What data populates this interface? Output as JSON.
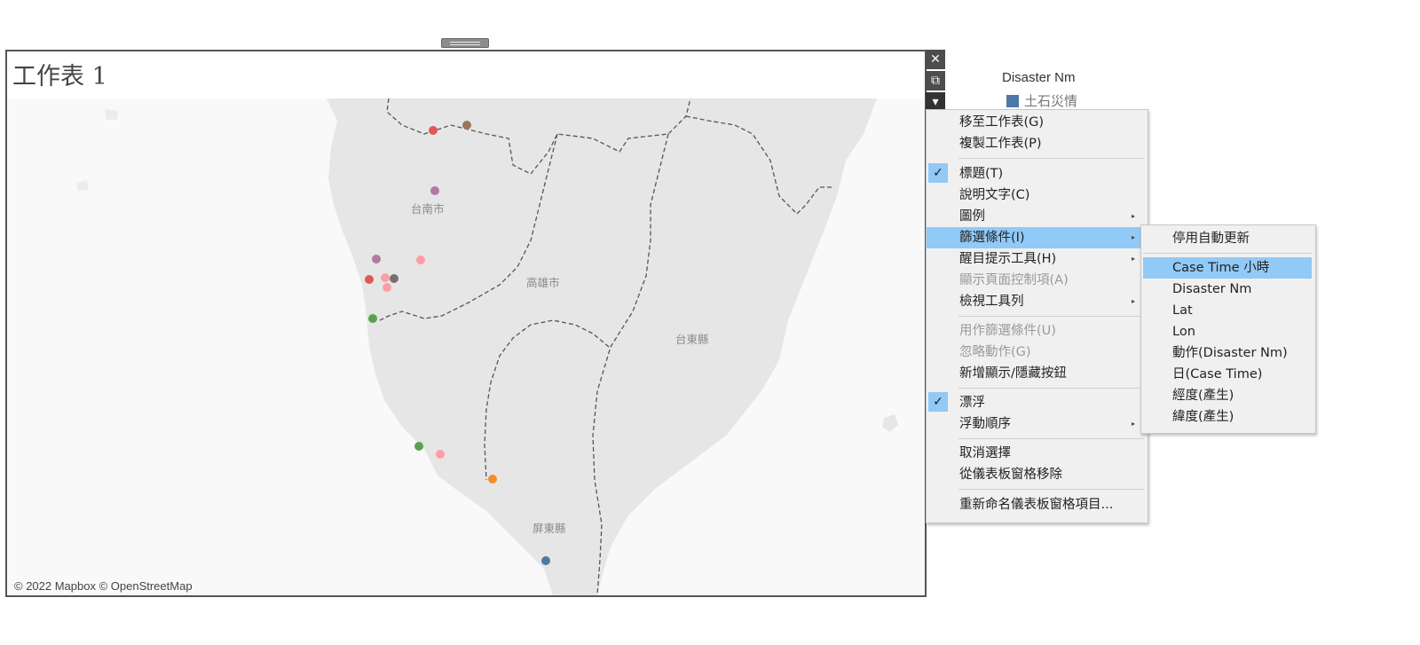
{
  "worksheet": {
    "title": "工作表 1",
    "attribution": "© 2022 Mapbox © OpenStreetMap",
    "map_labels": [
      "台南市",
      "高雄市",
      "台東縣",
      "屏東縣"
    ],
    "points": [
      {
        "color": "#e15759"
      },
      {
        "color": "#9c755f"
      },
      {
        "color": "#b07aa1"
      },
      {
        "color": "#b07aa1"
      },
      {
        "color": "#ff9da7"
      },
      {
        "color": "#e15759"
      },
      {
        "color": "#ff9da7"
      },
      {
        "color": "#79706e"
      },
      {
        "color": "#ff9da7"
      },
      {
        "color": "#59a14f"
      },
      {
        "color": "#59a14f"
      },
      {
        "color": "#ff9da7"
      },
      {
        "color": "#f28e2b"
      },
      {
        "color": "#4e79a7"
      }
    ]
  },
  "float_controls": {
    "close": "close-icon",
    "open": "external-link-icon",
    "more": "caret-down-icon"
  },
  "legend": {
    "title": "Disaster Nm",
    "items": [
      {
        "label": "土石災情",
        "color": "#4e79a7"
      }
    ]
  },
  "context_menu": {
    "items": [
      {
        "label": "移至工作表(G)"
      },
      {
        "label": "複製工作表(P)"
      },
      {
        "label": "標題(T)"
      },
      {
        "label": "說明文字(C)"
      },
      {
        "label": "圖例"
      },
      {
        "label": "篩選條件(I)"
      },
      {
        "label": "醒目提示工具(H)"
      },
      {
        "label": "顯示頁面控制項(A)"
      },
      {
        "label": "檢視工具列"
      },
      {
        "label": "用作篩選條件(U)"
      },
      {
        "label": "忽略動作(G)"
      },
      {
        "label": "新增顯示/隱藏按鈕"
      },
      {
        "label": "漂浮"
      },
      {
        "label": "浮動順序"
      },
      {
        "label": "取消選擇"
      },
      {
        "label": "從儀表板窗格移除"
      },
      {
        "label": "重新命名儀表板窗格項目..."
      }
    ],
    "check_icon": "✓",
    "submenu_arrow": "▸"
  },
  "filter_submenu": {
    "items": [
      {
        "label": "停用自動更新"
      },
      {
        "label": "Case Time 小時"
      },
      {
        "label": "Disaster Nm"
      },
      {
        "label": "Lat"
      },
      {
        "label": "Lon"
      },
      {
        "label": "動作(Disaster Nm)"
      },
      {
        "label": "日(Case Time)"
      },
      {
        "label": "經度(產生)"
      },
      {
        "label": "緯度(產生)"
      }
    ]
  }
}
